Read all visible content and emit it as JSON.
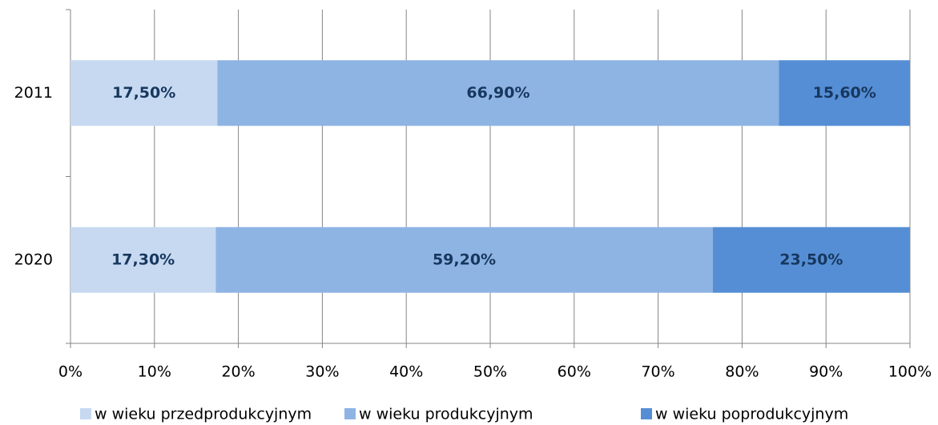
{
  "chart_data": {
    "type": "stacked_barh",
    "categories": [
      "2011",
      "2020"
    ],
    "series": [
      {
        "name": "w wieku przedprodukcyjnym",
        "color": "#c6d9f1",
        "values": [
          17.5,
          17.3
        ],
        "value_labels": [
          "17,50%",
          "17,30%"
        ]
      },
      {
        "name": "w wieku produkcyjnym",
        "color": "#8eb4e3",
        "values": [
          66.9,
          59.2
        ],
        "value_labels": [
          "66,90%",
          "59,20%"
        ]
      },
      {
        "name": "w wieku poprodukcyjnym",
        "color": "#558ed5",
        "values": [
          15.6,
          23.5
        ],
        "value_labels": [
          "15,60%",
          "23,50%"
        ]
      }
    ],
    "xlim": [
      0,
      100
    ],
    "xticks": [
      {
        "value": 0,
        "label": "0%"
      },
      {
        "value": 10,
        "label": "10%"
      },
      {
        "value": 20,
        "label": "20%"
      },
      {
        "value": 30,
        "label": "30%"
      },
      {
        "value": 40,
        "label": "40%"
      },
      {
        "value": 50,
        "label": "50%"
      },
      {
        "value": 60,
        "label": "60%"
      },
      {
        "value": 70,
        "label": "70%"
      },
      {
        "value": 80,
        "label": "80%"
      },
      {
        "value": 90,
        "label": "90%"
      },
      {
        "value": 100,
        "label": "100%"
      }
    ],
    "grid": true,
    "legend": "bottom"
  }
}
